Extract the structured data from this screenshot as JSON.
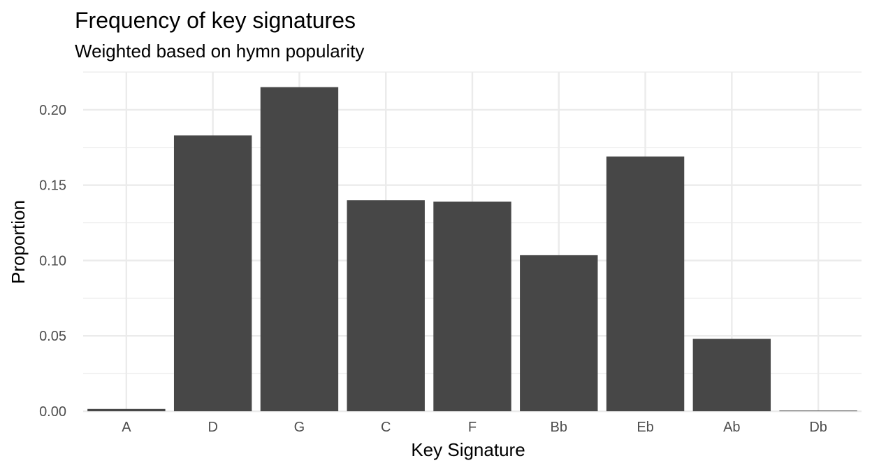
{
  "chart_data": {
    "type": "bar",
    "title": "Frequency of key signatures",
    "subtitle": "Weighted based on hymn popularity",
    "xlabel": "Key Signature",
    "ylabel": "Proportion",
    "categories": [
      "A",
      "D",
      "G",
      "C",
      "F",
      "Bb",
      "Eb",
      "Ab",
      "Db"
    ],
    "values": [
      0.0015,
      0.183,
      0.215,
      0.14,
      0.139,
      0.1035,
      0.169,
      0.048,
      0.0005
    ],
    "ylim": [
      0,
      0.225
    ],
    "yticks": [
      0.0,
      0.05,
      0.1,
      0.15,
      0.2
    ],
    "ytick_labels": [
      "0.00",
      "0.05",
      "0.10",
      "0.15",
      "0.20"
    ],
    "grid": true,
    "legend": "none",
    "bar_color": "#474747",
    "grid_color": "#ebebeb"
  }
}
